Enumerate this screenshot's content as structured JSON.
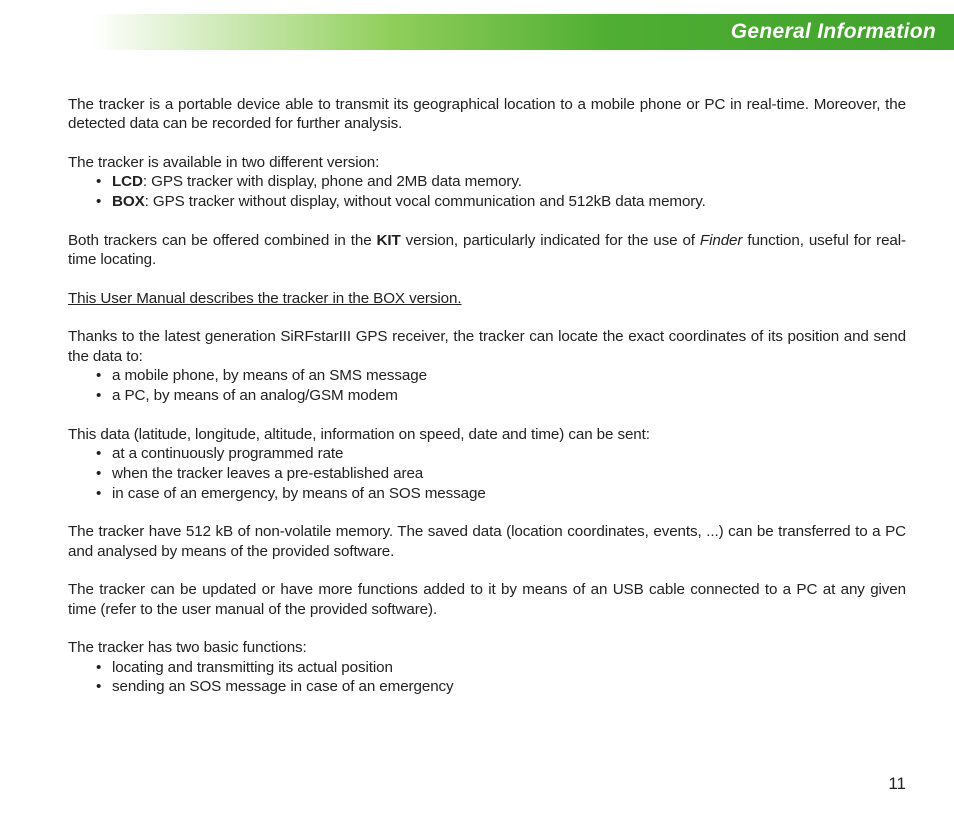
{
  "header": {
    "title": "General Information",
    "gradient_start": "#ffffff",
    "gradient_mid": "#8fce5a",
    "gradient_end": "#3fa22c",
    "title_color": "#ffffff",
    "title_fontsize": 21,
    "title_italic": true,
    "title_weight": 700
  },
  "body": {
    "font_family": "Helvetica",
    "font_size": 15.2,
    "text_color": "#222222",
    "p1": "The tracker is a portable device able to transmit its geographical location to a mobile phone or PC in real-time. Moreover, the detected data can be recorded for further analysis.",
    "p2_intro": "The tracker is available in two different version:",
    "list1": {
      "item1_bold": "LCD",
      "item1_rest": ": GPS tracker with display, phone and 2MB data memory.",
      "item2_bold": "BOX",
      "item2_rest": ": GPS tracker without display, without vocal communication and 512kB data memory."
    },
    "p3_a": "Both trackers can be offered combined in the ",
    "p3_bold": "KIT",
    "p3_b": " version, particularly indicated for the use of ",
    "p3_italic": "Finder",
    "p3_c": " function, useful for real-time locating.",
    "p4_underline": "This User Manual describes the tracker in the BOX version.",
    "p5": "Thanks to the latest generation SiRFstarIII GPS receiver, the tracker can locate the exact coordinates of its position and send the data to:",
    "list2": {
      "item1": "a mobile phone, by means of an SMS message",
      "item2": "a PC, by means of an analog/GSM modem"
    },
    "p6": "This data (latitude, longitude, altitude, information on speed, date and time) can be sent:",
    "list3": {
      "item1": "at a continuously programmed rate",
      "item2": "when the tracker leaves a pre-established area",
      "item3": "in case of an emergency, by means of an SOS message"
    },
    "p7": "The tracker have 512 kB of non-volatile memory. The saved data (location coordinates, events, ...) can be transferred to a PC and analysed by means of the provided software.",
    "p8": "The tracker can be updated or have more functions added to it by means of an USB cable connected to a PC at any given time (refer to the user manual of the provided software).",
    "p9": "The tracker has two basic functions:",
    "list4": {
      "item1": "locating and transmitting its actual position",
      "item2": "sending an SOS message in case of an emergency"
    }
  },
  "page_number": "11"
}
